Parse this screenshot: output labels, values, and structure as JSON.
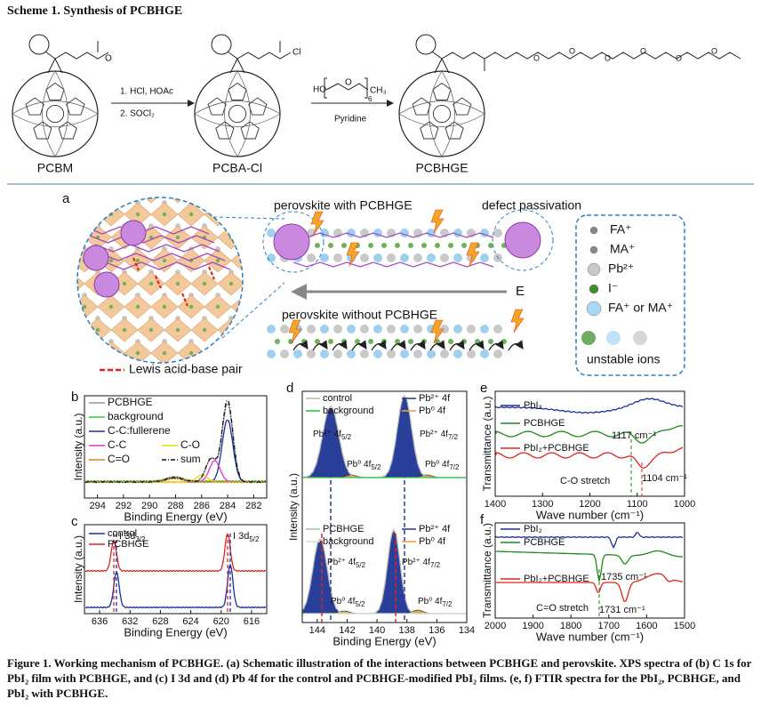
{
  "scheme": {
    "title": "Scheme 1. Synthesis of PCBHGE",
    "compounds": [
      "PCBM",
      "PCBA-Cl",
      "PCBHGE"
    ],
    "step1": [
      "1. HCl, HOAc",
      "2. SOCl₂"
    ],
    "step2_reagent": {
      "main": "HO",
      "unit": "O",
      "n": "6",
      "end": "CH₃"
    },
    "step2_condition": "Pyridine",
    "atom_o": "O",
    "atom_cl": "Cl"
  },
  "panel_a": {
    "label": "a",
    "with": "perovskite with PCBHGE",
    "passivation": "defect passivation",
    "field": "E",
    "without": "perovskite without PCBHGE",
    "lewis": "Lewis acid-base pair",
    "legend": [
      "FA⁺",
      "MA⁺",
      "Pb²⁺",
      "I⁻",
      "FA⁺ or MA⁺",
      "unstable ions"
    ]
  },
  "panel_b": {
    "label": "b",
    "legend": [
      "PCBHGE",
      "background",
      "C-C:fullerene",
      "C-C",
      "C-O",
      "C=O",
      "sum"
    ],
    "ylabel": "Intensity (a.u.)",
    "xlabel": "Binding Energy (eV)",
    "xlim": [
      295,
      281
    ],
    "xticks": [
      294,
      292,
      290,
      288,
      286,
      284,
      282
    ]
  },
  "panel_c": {
    "label": "c",
    "legend": [
      "control",
      "PCBHGE"
    ],
    "annotations": [
      {
        "main": "I 3d",
        "sub": "3/2"
      },
      {
        "main": "I 3d",
        "sub": "5/2"
      }
    ],
    "ylabel": "Intensity (a.u.)",
    "xlabel": "Binding Energy (eV)",
    "xlim": [
      638,
      614
    ],
    "xticks": [
      636,
      632,
      628,
      624,
      620,
      616
    ]
  },
  "panel_d": {
    "label": "d",
    "top_legend": [
      "control",
      "background",
      "Pb²⁺ 4f",
      "Pb⁰ 4f"
    ],
    "bottom_legend": [
      "PCBHGE",
      "background",
      "Pb²⁺ 4f",
      "Pb⁰ 4f"
    ],
    "annotations": [
      {
        "main": "Pb²⁺ 4f",
        "sub": "5/2"
      },
      {
        "main": "Pb⁰ 4f",
        "sub": "5/2"
      },
      {
        "main": "Pb²⁺ 4f",
        "sub": "7/2"
      },
      {
        "main": "Pb⁰ 4f",
        "sub": "7/2"
      }
    ],
    "ylabel": "Intensity (a.u.)",
    "xlabel": "Binding Energy (eV)",
    "xlim": [
      145,
      134
    ],
    "xticks": [
      144,
      142,
      140,
      138,
      136,
      134
    ]
  },
  "panel_e": {
    "label": "e",
    "curves": [
      "PbI₂",
      "PCBHGE",
      "PbI₂+PCBHGE"
    ],
    "annotations": [
      "1117 cm⁻¹",
      "C-O stretch",
      "1104 cm⁻¹"
    ],
    "ylabel": "Transmittance (a.u.)",
    "xlabel": "Wave number (cm⁻¹)",
    "xlim": [
      1400,
      1000
    ],
    "xticks": [
      1400,
      1300,
      1200,
      1100,
      1000
    ]
  },
  "panel_f": {
    "label": "f",
    "curves": [
      "PbI₂",
      "PCBHGE",
      "PbI₂+PCBHGE"
    ],
    "annotations": [
      "1735 cm⁻¹",
      "C=O stretch",
      "1731 cm⁻¹"
    ],
    "ylabel": "Transmittance (a.u.)",
    "xlabel": "Wave number (cm⁻¹)",
    "xlim": [
      2000,
      1500
    ],
    "xticks": [
      2000,
      1900,
      1800,
      1700,
      1600,
      1500
    ]
  },
  "caption": "Figure 1. Working mechanism of PCBHGE. (a) Schematic illustration of the interactions between PCBHGE and perovskite. XPS spectra of (b) C 1s for PbI₂ film with PCBHGE, and (c) I 3d and (d) Pb 4f for the control and PCBHGE-modified PbI₂ films. (e, f) FTIR spectra for the PbI₂, PCBHGE, and PbI₂ with PCBHGE."
}
